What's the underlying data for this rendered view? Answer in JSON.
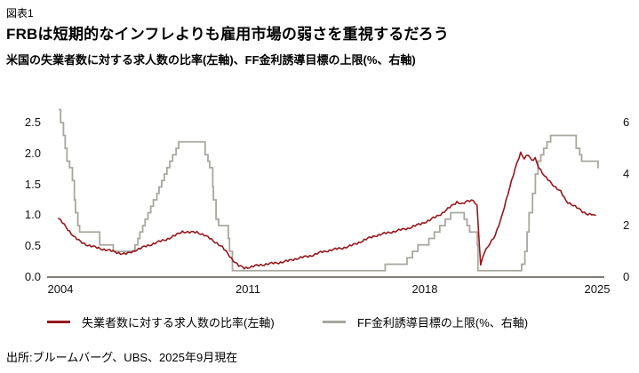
{
  "figure": {
    "fig_label": "図表1",
    "title": "FRBは短期的なインフレよりも雇用市場の弱さを重視するだろう",
    "subtitle": "米国の失業者数に対する求人数の比率(左軸)、FF金利誘導目標の上限(%、右軸)",
    "source": "出所:ブルームバーグ、UBS、2025年9月現在"
  },
  "legend": {
    "items": [
      {
        "label": "失業者数に対する求人数の比率(左軸)",
        "color": "#96181d"
      },
      {
        "label": "FF金利誘導目標の上限(%、右軸)",
        "color": "#a8a79e"
      }
    ]
  },
  "chart_data": {
    "type": "line",
    "title": "FRBは短期的なインフレよりも雇用市場の弱さを重視するだろう",
    "subtitle": "米国の失業者数に対する求人数の比率(左軸)、FF金利誘導目標の上限(%、右軸)",
    "grid": false,
    "legend_position": "bottom",
    "x_axis": {
      "ticks": [
        "2004",
        "2011",
        "2018",
        "2025"
      ]
    },
    "left_axis": {
      "label": "失業者数に対する求人数の比率",
      "ticks": [
        "2.5",
        "2.0",
        "1.5",
        "1.0",
        "0.5",
        "0.0"
      ],
      "range": [
        0.0,
        2.875
      ]
    },
    "right_axis": {
      "label": "FF金利誘導目標の上限(%)",
      "ticks": [
        "6",
        "4",
        "2",
        "0"
      ],
      "range": [
        0,
        6.9
      ]
    },
    "axis_color": "#332f28",
    "series": [
      {
        "name": "失業者数に対する求人数の比率(左軸)",
        "axis": "left",
        "style": "line",
        "color": "#96181d",
        "points": [
          [
            2001.0,
            0.95
          ],
          [
            2001.17,
            0.88
          ],
          [
            2001.33,
            0.81
          ],
          [
            2001.5,
            0.74
          ],
          [
            2001.75,
            0.64
          ],
          [
            2002.0,
            0.57
          ],
          [
            2002.25,
            0.53
          ],
          [
            2002.5,
            0.5
          ],
          [
            2002.75,
            0.475
          ],
          [
            2003.0,
            0.455
          ],
          [
            2003.33,
            0.43
          ],
          [
            2003.66,
            0.4
          ],
          [
            2003.9,
            0.38
          ],
          [
            2004.1,
            0.375
          ],
          [
            2004.3,
            0.4
          ],
          [
            2004.5,
            0.435
          ],
          [
            2004.75,
            0.465
          ],
          [
            2005.0,
            0.5
          ],
          [
            2005.5,
            0.56
          ],
          [
            2006.0,
            0.62
          ],
          [
            2006.33,
            0.67
          ],
          [
            2006.66,
            0.74
          ],
          [
            2007.0,
            0.72
          ],
          [
            2007.33,
            0.73
          ],
          [
            2007.66,
            0.68
          ],
          [
            2008.0,
            0.61
          ],
          [
            2008.25,
            0.55
          ],
          [
            2008.5,
            0.48
          ],
          [
            2008.75,
            0.38
          ],
          [
            2009.0,
            0.27
          ],
          [
            2009.25,
            0.18
          ],
          [
            2009.5,
            0.15
          ],
          [
            2009.75,
            0.16
          ],
          [
            2010.0,
            0.18
          ],
          [
            2010.5,
            0.21
          ],
          [
            2011.0,
            0.23
          ],
          [
            2011.5,
            0.26
          ],
          [
            2012.0,
            0.31
          ],
          [
            2012.5,
            0.34
          ],
          [
            2013.0,
            0.4
          ],
          [
            2013.5,
            0.44
          ],
          [
            2014.0,
            0.47
          ],
          [
            2014.5,
            0.52
          ],
          [
            2015.0,
            0.6
          ],
          [
            2015.5,
            0.67
          ],
          [
            2016.0,
            0.71
          ],
          [
            2016.5,
            0.75
          ],
          [
            2017.0,
            0.79
          ],
          [
            2017.5,
            0.85
          ],
          [
            2018.0,
            0.92
          ],
          [
            2018.5,
            1.02
          ],
          [
            2018.75,
            1.08
          ],
          [
            2019.0,
            1.15
          ],
          [
            2019.25,
            1.22
          ],
          [
            2019.5,
            1.18
          ],
          [
            2019.75,
            1.23
          ],
          [
            2020.0,
            1.25
          ],
          [
            2020.17,
            1.15
          ],
          [
            2020.33,
            0.18
          ],
          [
            2020.5,
            0.4
          ],
          [
            2020.75,
            0.55
          ],
          [
            2021.0,
            0.67
          ],
          [
            2021.25,
            0.92
          ],
          [
            2021.5,
            1.25
          ],
          [
            2021.75,
            1.55
          ],
          [
            2022.0,
            1.85
          ],
          [
            2022.17,
            2.02
          ],
          [
            2022.33,
            1.92
          ],
          [
            2022.5,
            1.98
          ],
          [
            2022.67,
            1.88
          ],
          [
            2022.83,
            1.93
          ],
          [
            2023.0,
            1.78
          ],
          [
            2023.25,
            1.63
          ],
          [
            2023.5,
            1.55
          ],
          [
            2023.75,
            1.46
          ],
          [
            2024.0,
            1.38
          ],
          [
            2024.25,
            1.23
          ],
          [
            2024.5,
            1.18
          ],
          [
            2024.75,
            1.12
          ],
          [
            2025.0,
            1.06
          ],
          [
            2025.25,
            1.02
          ],
          [
            2025.45,
            1.01
          ],
          [
            2025.6,
            0.98
          ]
        ]
      },
      {
        "name": "FF金利誘導目標の上限(%、右軸)",
        "axis": "right",
        "style": "step",
        "color": "#a8a79e",
        "points": [
          [
            2001.0,
            6.5
          ],
          [
            2001.09,
            6.0
          ],
          [
            2001.22,
            5.5
          ],
          [
            2001.3,
            5.0
          ],
          [
            2001.38,
            4.5
          ],
          [
            2001.5,
            4.25
          ],
          [
            2001.63,
            3.75
          ],
          [
            2001.72,
            3.0
          ],
          [
            2001.77,
            2.5
          ],
          [
            2001.88,
            2.0
          ],
          [
            2001.96,
            1.75
          ],
          [
            2002.88,
            1.25
          ],
          [
            2003.5,
            1.0
          ],
          [
            2004.5,
            1.25
          ],
          [
            2004.63,
            1.5
          ],
          [
            2004.72,
            1.75
          ],
          [
            2004.85,
            2.0
          ],
          [
            2004.96,
            2.25
          ],
          [
            2005.09,
            2.5
          ],
          [
            2005.22,
            2.75
          ],
          [
            2005.34,
            3.0
          ],
          [
            2005.5,
            3.25
          ],
          [
            2005.6,
            3.5
          ],
          [
            2005.72,
            3.75
          ],
          [
            2005.84,
            4.0
          ],
          [
            2005.96,
            4.25
          ],
          [
            2006.09,
            4.5
          ],
          [
            2006.22,
            4.75
          ],
          [
            2006.38,
            5.0
          ],
          [
            2006.5,
            5.25
          ],
          [
            2007.71,
            4.75
          ],
          [
            2007.84,
            4.5
          ],
          [
            2007.92,
            4.25
          ],
          [
            2008.06,
            3.5
          ],
          [
            2008.09,
            3.0
          ],
          [
            2008.21,
            2.25
          ],
          [
            2008.33,
            2.0
          ],
          [
            2008.77,
            1.5
          ],
          [
            2008.83,
            1.0
          ],
          [
            2008.96,
            0.25
          ],
          [
            2015.96,
            0.5
          ],
          [
            2016.96,
            0.75
          ],
          [
            2017.21,
            1.0
          ],
          [
            2017.46,
            1.25
          ],
          [
            2017.96,
            1.5
          ],
          [
            2018.21,
            1.75
          ],
          [
            2018.46,
            2.0
          ],
          [
            2018.71,
            2.25
          ],
          [
            2018.96,
            2.5
          ],
          [
            2019.58,
            2.25
          ],
          [
            2019.71,
            2.0
          ],
          [
            2019.83,
            1.75
          ],
          [
            2020.18,
            1.25
          ],
          [
            2020.21,
            0.25
          ],
          [
            2022.21,
            0.5
          ],
          [
            2022.36,
            1.0
          ],
          [
            2022.46,
            1.75
          ],
          [
            2022.55,
            2.5
          ],
          [
            2022.71,
            3.25
          ],
          [
            2022.84,
            4.0
          ],
          [
            2022.96,
            4.5
          ],
          [
            2023.09,
            4.75
          ],
          [
            2023.22,
            5.0
          ],
          [
            2023.37,
            5.25
          ],
          [
            2023.54,
            5.5
          ],
          [
            2024.71,
            5.0
          ],
          [
            2024.87,
            4.75
          ],
          [
            2024.96,
            4.5
          ],
          [
            2025.71,
            4.25
          ]
        ]
      }
    ]
  }
}
